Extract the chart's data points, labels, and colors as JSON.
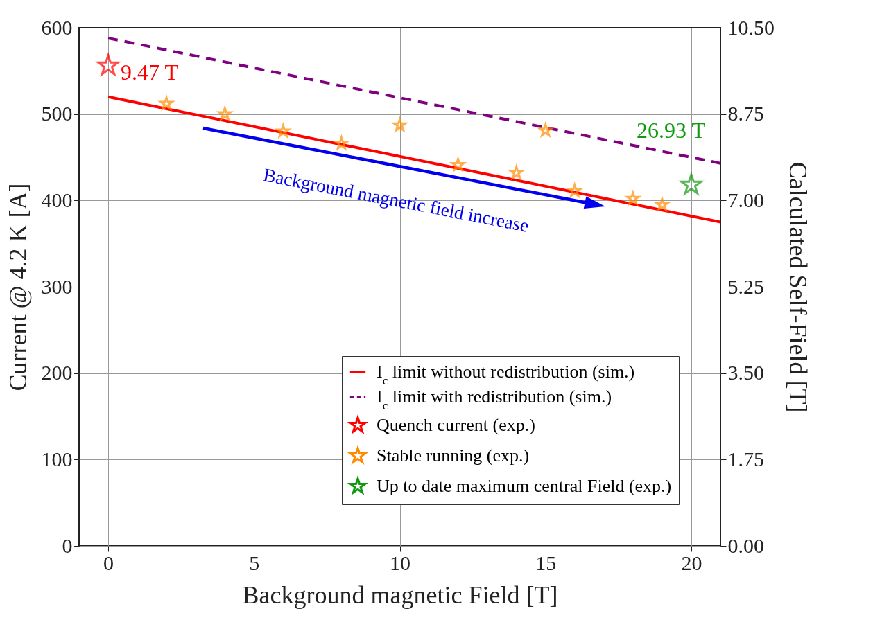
{
  "chart_data": {
    "type": "line",
    "xlabel": "Background magnetic Field [T]",
    "ylabel": "Current @ 4.2 K [A]",
    "y2label": "Calculated Self-Field [T]",
    "xlim": [
      -1,
      21
    ],
    "xticks": [
      0,
      5,
      10,
      15,
      20
    ],
    "ylim": [
      0,
      600
    ],
    "yticks": [
      0,
      100,
      200,
      300,
      400,
      500,
      600
    ],
    "y2lim": [
      0,
      10.5
    ],
    "y2ticks": [
      {
        "value": 0,
        "label": "0.00"
      },
      1.75,
      {
        "value": 3.5,
        "label": "3.50"
      },
      5.25,
      {
        "value": 7,
        "label": "7.00"
      },
      8.75,
      {
        "value": 10.5,
        "label": "10.50"
      }
    ],
    "grid": true,
    "legend": "bottom right",
    "series": [
      {
        "name": "I$_{c}$ limit without redistribution (sim.)",
        "line_style": "solid",
        "color": "#ff0000",
        "x": [
          0,
          21
        ],
        "values": [
          520,
          375
        ]
      },
      {
        "name": "I$_{c}$ limit with redistribution (sim.)",
        "line_style": "dashed",
        "color": "#800080",
        "x": [
          0,
          21
        ],
        "values": [
          588,
          443
        ]
      },
      {
        "name": "Quench current (exp.)",
        "type": "scatter",
        "marker": "star",
        "color": "#ff0000",
        "x": [
          0
        ],
        "values": [
          556
        ]
      },
      {
        "name": "Stable running (exp.)",
        "type": "scatter",
        "marker": "star",
        "color": "#ff8c00",
        "x": [
          2,
          4,
          6,
          8,
          10,
          12,
          14,
          15,
          16,
          18,
          19
        ],
        "values": [
          512,
          500,
          480,
          466,
          487,
          441,
          432,
          481,
          411,
          402,
          395
        ]
      },
      {
        "name": "Up to date maximum central Field (exp.)",
        "type": "scatter",
        "marker": "star",
        "color": "#119911",
        "x": [
          20
        ],
        "values": [
          418
        ]
      }
    ],
    "annotations": [
      {
        "text": "9.47 T",
        "x": 0,
        "y": 556
      },
      {
        "text": "26.93 T",
        "x": 20,
        "y": 418
      },
      "Background magnetic field increase"
    ]
  }
}
